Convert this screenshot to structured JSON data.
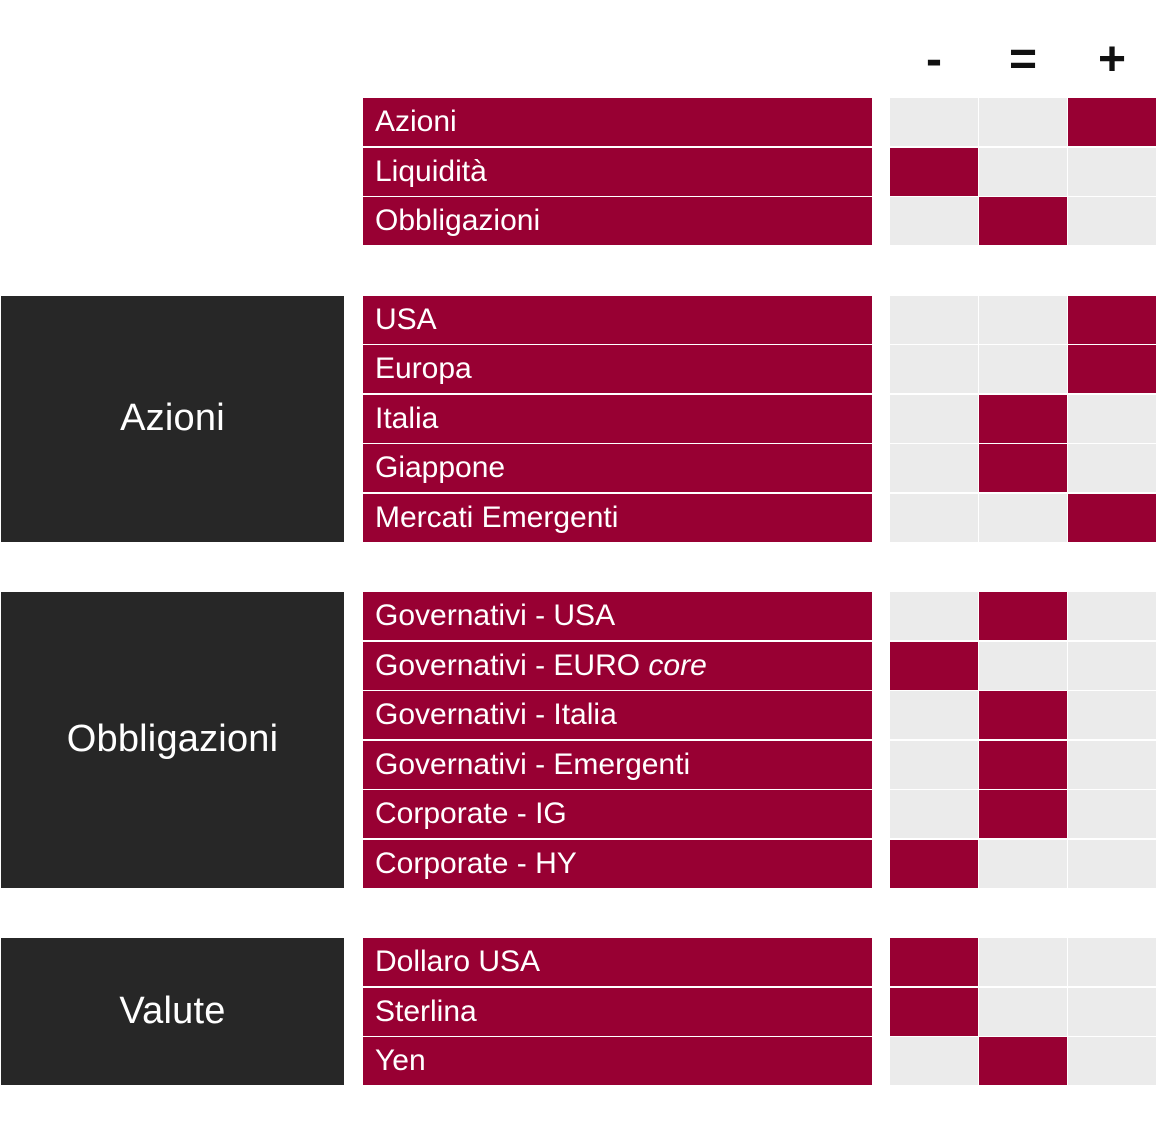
{
  "header": {
    "columns": [
      "-",
      "=",
      "+"
    ]
  },
  "colors": {
    "item_bar": "#980033",
    "marked_cell": "#980033",
    "empty_cell": "#ebebeb",
    "group_block": "#272727"
  },
  "chart_data": {
    "type": "table",
    "columns": [
      "-",
      "=",
      "+"
    ],
    "groups": [
      {
        "label": "",
        "items": [
          {
            "label": "Azioni",
            "rating": "+"
          },
          {
            "label": "Liquidità",
            "rating": "-"
          },
          {
            "label": "Obbligazioni",
            "rating": "="
          }
        ]
      },
      {
        "label": "Azioni",
        "items": [
          {
            "label": "USA",
            "rating": "+"
          },
          {
            "label": "Europa",
            "rating": "+"
          },
          {
            "label": "Italia",
            "rating": "="
          },
          {
            "label": "Giappone",
            "rating": "="
          },
          {
            "label": "Mercati Emergenti",
            "rating": "+"
          }
        ]
      },
      {
        "label": "Obbligazioni",
        "items": [
          {
            "label": "Governativi - USA",
            "rating": "="
          },
          {
            "label": "Governativi - EURO",
            "label_suffix_italic": "core",
            "rating": "-"
          },
          {
            "label": "Governativi - Italia",
            "rating": "="
          },
          {
            "label": "Governativi - Emergenti",
            "rating": "="
          },
          {
            "label": "Corporate - IG",
            "rating": "="
          },
          {
            "label": "Corporate - HY",
            "rating": "-"
          }
        ]
      },
      {
        "label": "Valute",
        "items": [
          {
            "label": "Dollaro USA",
            "rating": "-"
          },
          {
            "label": "Sterlina",
            "rating": "-"
          },
          {
            "label": "Yen",
            "rating": "="
          }
        ]
      }
    ]
  }
}
